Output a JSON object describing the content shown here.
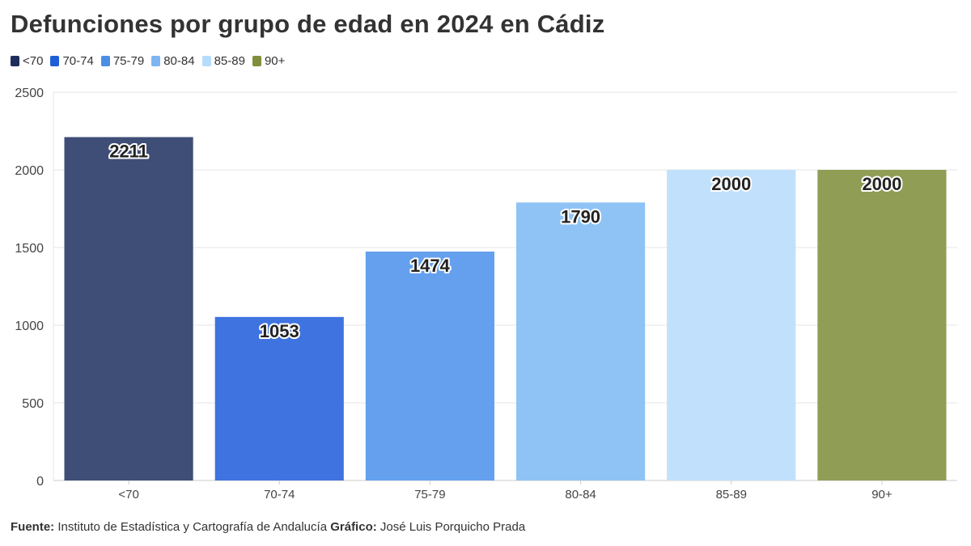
{
  "header": {
    "title": "Defunciones por grupo de edad en 2024 en Cádiz"
  },
  "legend": {
    "items": [
      {
        "label": "<70",
        "color": "#1f2d5c"
      },
      {
        "label": "70-74",
        "color": "#1f5fd6"
      },
      {
        "label": "75-79",
        "color": "#4a8ee6"
      },
      {
        "label": "80-84",
        "color": "#7db6f2"
      },
      {
        "label": "85-89",
        "color": "#b6dcfb"
      },
      {
        "label": "90+",
        "color": "#7f8f3c"
      }
    ]
  },
  "footer": {
    "source_label": "Fuente:",
    "source_text": "Instituto de Estadística y Cartografía de Andalucía",
    "chart_label": "Gráfico:",
    "chart_text": "José Luis Porquicho Prada"
  },
  "chart_data": {
    "type": "bar",
    "title": "Defunciones por grupo de edad en 2024 en Cádiz",
    "xlabel": "",
    "ylabel": "",
    "categories": [
      "<70",
      "70-74",
      "75-79",
      "80-84",
      "85-89",
      "90+"
    ],
    "values": [
      2211,
      1053,
      1474,
      1790,
      2000,
      2000
    ],
    "data_labels": [
      "2211",
      "1053",
      "1474",
      "1790",
      "2000",
      "2000"
    ],
    "colors": [
      "#3f4e76",
      "#3f74e0",
      "#64a0ee",
      "#8fc3f6",
      "#c1e0fb",
      "#8f9d55"
    ],
    "ylim": [
      0,
      2500
    ],
    "yticks": [
      0,
      500,
      1000,
      1500,
      2000,
      2500
    ],
    "grid": true,
    "legend_position": "top-left"
  }
}
